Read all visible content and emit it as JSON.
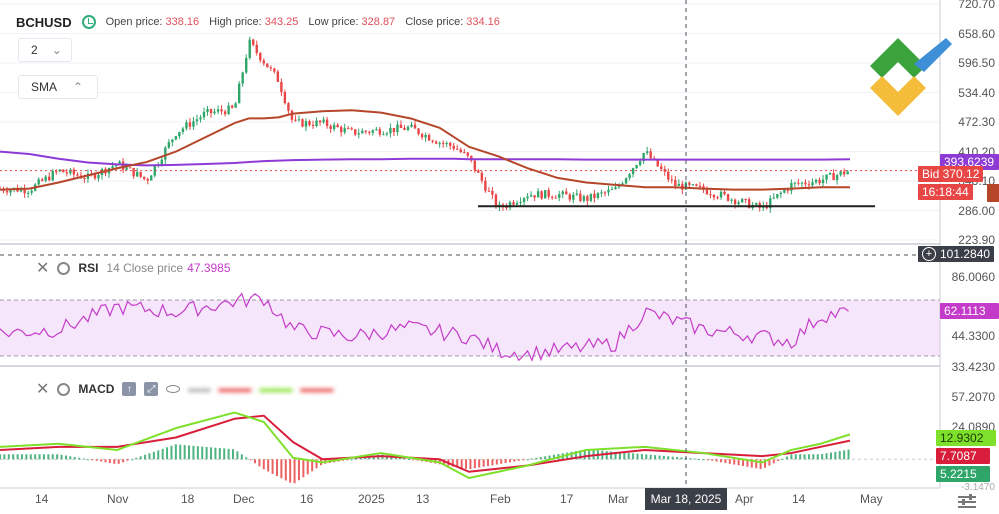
{
  "header": {
    "symbol": "BCHUSD",
    "open_label": "Open price:",
    "open_value": "338.16",
    "high_label": "High price:",
    "high_value": "343.25",
    "low_label": "Low price:",
    "low_value": "328.87",
    "close_label": "Close price:",
    "close_value": "334.16"
  },
  "timeframe": {
    "value": "2"
  },
  "sma_label": "SMA",
  "rsi": {
    "name": "RSI",
    "params": "14 Close price",
    "value": "47.3985"
  },
  "macd": {
    "name": "MACD"
  },
  "price_axis": [
    "720.70",
    "658.60",
    "596.50",
    "534.40",
    "472.30",
    "410.20",
    "348.10",
    "286.00",
    "223.90"
  ],
  "price_tags": {
    "sma_long": "393.6239",
    "bid": "Bid 370.12",
    "countdown": "16:18:44",
    "cursor": "101.2840"
  },
  "rsi_axis": [
    "86.0060",
    "62.1113",
    "44.3300",
    "33.4230"
  ],
  "rsi_tag": "62.1113",
  "macd_axis": [
    "57.2070",
    "24.0890",
    "12.9302",
    "7.7087",
    "5.2215",
    "-3.1470"
  ],
  "macd_tags": {
    "signal_up": "12.9302",
    "macd": "7.7087",
    "hist": "5.2215"
  },
  "x_axis": [
    "14",
    "Nov",
    "18",
    "Dec",
    "16",
    "2025",
    "13",
    "Feb",
    "17",
    "Mar",
    "Apr",
    "14",
    "May"
  ],
  "x_cursor": "Mar 18, 2025",
  "colors": {
    "bull": "#2ea66a",
    "bear": "#e84545",
    "sma_fast": "#b5462a",
    "sma_slow": "#8e3bd6",
    "rsi": "#c43bc9",
    "macd_fast": "#7ee02a",
    "macd_slow": "#d81e3a",
    "logo_green": "#3ba33b",
    "logo_yellow": "#f2b82e",
    "logo_blue": "#3e8fd8"
  },
  "chart_data": {
    "type": "line",
    "price": {
      "ylim": [
        223.9,
        720.7
      ],
      "x": [
        0,
        10,
        20,
        30,
        40,
        50,
        60,
        70,
        80,
        85,
        90,
        95,
        100,
        110,
        120,
        130,
        140,
        150,
        155,
        160,
        170,
        180,
        190,
        200,
        210,
        220,
        230,
        240,
        250,
        260,
        270,
        280,
        290
      ],
      "close": [
        332,
        330,
        370,
        355,
        385,
        350,
        450,
        490,
        500,
        640,
        600,
        560,
        470,
        470,
        450,
        455,
        460,
        430,
        420,
        395,
        290,
        320,
        320,
        310,
        330,
        410,
        340,
        330,
        310,
        290,
        340,
        350,
        370
      ],
      "sma_fast": [
        330,
        332,
        345,
        360,
        375,
        388,
        410,
        440,
        470,
        480,
        480,
        482,
        490,
        495,
        497,
        492,
        480,
        460,
        440,
        420,
        400,
        375,
        355,
        345,
        340,
        335,
        335,
        332,
        330,
        330,
        332,
        335,
        335
      ],
      "sma_slow": [
        410,
        405,
        395,
        387,
        383,
        381,
        382,
        384,
        386,
        388,
        390,
        391,
        392,
        393,
        394,
        394,
        395,
        395,
        395,
        394,
        394,
        394,
        394,
        393,
        393,
        393,
        393,
        393,
        393,
        393,
        393,
        393,
        394
      ],
      "support_level": 295
    },
    "rsi": {
      "ylim": [
        33.423,
        86.006
      ],
      "x": [
        0,
        20,
        40,
        60,
        80,
        90,
        100,
        120,
        140,
        160,
        170,
        180,
        200,
        210,
        220,
        240,
        260,
        270,
        280,
        290
      ],
      "values": [
        50,
        52,
        65,
        62,
        68,
        70,
        52,
        48,
        53,
        48,
        40,
        38,
        42,
        44,
        62,
        52,
        48,
        45,
        60,
        62
      ]
    },
    "macd": {
      "ylim": [
        -3.147,
        57.207
      ],
      "x": [
        0,
        20,
        40,
        60,
        80,
        90,
        100,
        110,
        130,
        150,
        160,
        170,
        180,
        200,
        220,
        240,
        260,
        270,
        280,
        290
      ],
      "macd": [
        22,
        24,
        20,
        34,
        44,
        38,
        15,
        12,
        18,
        12,
        2,
        6,
        10,
        20,
        22,
        18,
        12,
        20,
        24,
        30
      ],
      "signal": [
        20,
        22,
        22,
        28,
        40,
        42,
        25,
        14,
        16,
        14,
        6,
        8,
        10,
        16,
        20,
        18,
        16,
        18,
        22,
        26
      ]
    }
  }
}
